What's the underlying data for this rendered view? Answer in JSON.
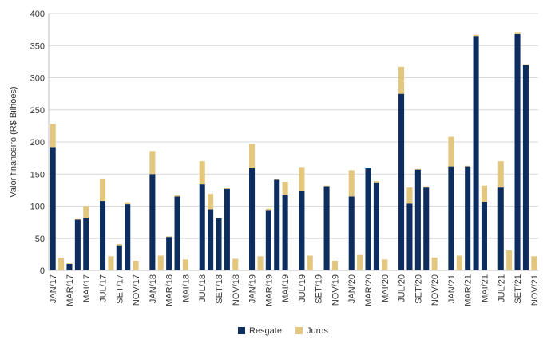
{
  "chart_data": {
    "type": "bar",
    "stacked": true,
    "ylabel": "Valor financeiro (R$ Bilhões)",
    "xlabel": "",
    "ylim": [
      0,
      400
    ],
    "yticks": [
      0,
      50,
      100,
      150,
      200,
      250,
      300,
      350,
      400
    ],
    "grid": true,
    "legend_position": "bottom",
    "categories": [
      "JAN/17",
      "FEV/17",
      "MAR/17",
      "ABR/17",
      "MAI/17",
      "JUN/17",
      "JUL/17",
      "AGO/17",
      "SET/17",
      "OUT/17",
      "NOV/17",
      "DEZ/17",
      "JAN/18",
      "FEV/18",
      "MAR/18",
      "ABR/18",
      "MAI/18",
      "JUN/18",
      "JUL/18",
      "AGO/18",
      "SET/18",
      "OUT/18",
      "NOV/18",
      "DEZ/18",
      "JAN/19",
      "FEV/19",
      "MAR/19",
      "ABR/19",
      "MAI/19",
      "JUN/19",
      "JUL/19",
      "AGO/19",
      "SET/19",
      "OUT/19",
      "NOV/19",
      "DEZ/19",
      "JAN/20",
      "FEV/20",
      "MAR/20",
      "ABR/20",
      "MAI/20",
      "JUN/20",
      "JUL/20",
      "AGO/20",
      "SET/20",
      "OUT/20",
      "NOV/20",
      "DEZ/20",
      "JAN/21",
      "FEV/21",
      "MAR/21",
      "ABR/21",
      "MAI/21",
      "JUN/21",
      "JUL/21",
      "AGO/21",
      "SET/21",
      "OUT/21",
      "NOV/21"
    ],
    "tick_labels": [
      "JAN/17",
      "MAR/17",
      "MAI/17",
      "JUL/17",
      "SET/17",
      "NOV/17",
      "JAN/18",
      "MAR/18",
      "MAI/18",
      "JUL/18",
      "SET/18",
      "NOV/18",
      "JAN/19",
      "MAR/19",
      "MAI/19",
      "JUL/19",
      "SET/19",
      "NOV/19",
      "JAN/20",
      "MAR/20",
      "MAI/20",
      "JUL/20",
      "SET/20",
      "NOV/20",
      "JAN/21",
      "MAR/21",
      "MAI/21",
      "JUL/21",
      "SET/21",
      "NOV/21"
    ],
    "series": [
      {
        "name": "Resgate",
        "color": "#0d2d5e",
        "values": [
          192,
          0,
          10,
          79,
          82,
          0,
          108,
          0,
          39,
          103,
          0,
          0,
          150,
          0,
          52,
          115,
          0,
          0,
          134,
          95,
          82,
          127,
          0,
          0,
          160,
          0,
          94,
          141,
          117,
          0,
          123,
          0,
          0,
          131,
          0,
          0,
          115,
          0,
          159,
          137,
          0,
          0,
          275,
          104,
          157,
          129,
          0,
          0,
          162,
          0,
          162,
          365,
          107,
          0,
          129,
          0,
          369,
          320,
          0
        ]
      },
      {
        "name": "Juros",
        "color": "#e3c77e",
        "values": [
          36,
          20,
          1,
          2,
          18,
          0,
          35,
          22,
          2,
          3,
          15,
          0,
          36,
          23,
          1,
          2,
          17,
          0,
          36,
          24,
          0,
          1,
          18,
          0,
          37,
          22,
          2,
          1,
          21,
          0,
          38,
          23,
          0,
          1,
          15,
          0,
          41,
          24,
          1,
          2,
          17,
          0,
          42,
          25,
          1,
          2,
          20,
          0,
          46,
          23,
          1,
          2,
          25,
          0,
          41,
          31,
          2,
          1,
          22
        ]
      }
    ]
  }
}
